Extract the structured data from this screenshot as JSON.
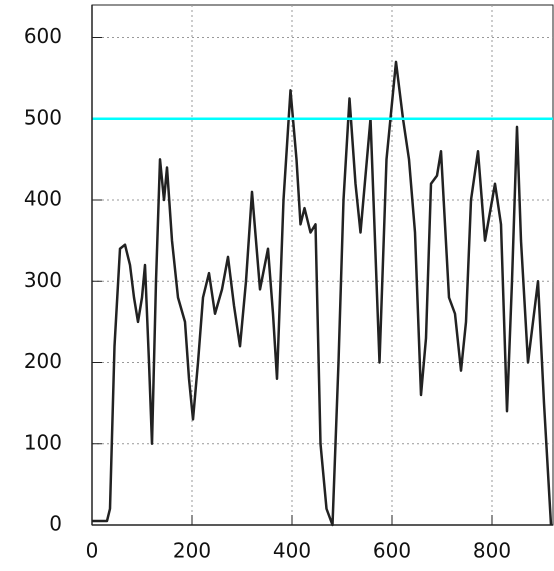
{
  "chart_data": {
    "type": "line",
    "x": [
      0,
      20,
      30,
      36,
      45,
      56,
      66,
      76,
      84,
      92,
      100,
      106,
      114,
      120,
      128,
      136,
      144,
      150,
      160,
      172,
      186,
      194,
      202,
      212,
      222,
      234,
      246,
      260,
      272,
      284,
      296,
      308,
      320,
      336,
      352,
      362,
      370,
      383,
      397,
      409,
      417,
      425,
      437,
      447,
      457,
      469,
      481,
      493,
      503,
      515,
      527,
      537,
      547,
      557,
      575,
      589,
      608,
      622,
      634,
      646,
      658,
      668,
      678,
      690,
      698,
      714,
      726,
      738,
      748,
      758,
      772,
      786,
      806,
      818,
      830,
      840,
      850,
      858,
      872,
      892,
      904,
      918
    ],
    "series": [
      {
        "color": "#222222",
        "values": [
          5,
          5,
          5,
          20,
          220,
          340,
          345,
          320,
          280,
          250,
          280,
          320,
          200,
          100,
          300,
          450,
          400,
          440,
          350,
          280,
          250,
          180,
          130,
          200,
          280,
          310,
          260,
          290,
          330,
          270,
          220,
          300,
          410,
          290,
          340,
          260,
          180,
          400,
          535,
          450,
          370,
          390,
          360,
          370,
          100,
          20,
          0,
          200,
          400,
          525,
          420,
          360,
          430,
          500,
          200,
          450,
          570,
          500,
          450,
          360,
          160,
          230,
          420,
          430,
          460,
          280,
          260,
          190,
          250,
          400,
          460,
          350,
          420,
          370,
          140,
          300,
          490,
          350,
          200,
          300,
          150,
          0
        ]
      }
    ],
    "hline": {
      "value": 500,
      "color": "#00ffff"
    },
    "xlim": [
      0,
      922
    ],
    "ylim": [
      0,
      640
    ],
    "xticks": [
      0,
      200,
      400,
      600,
      800
    ],
    "yticks": [
      0,
      100,
      200,
      300,
      400,
      500,
      600
    ],
    "grid": true
  }
}
